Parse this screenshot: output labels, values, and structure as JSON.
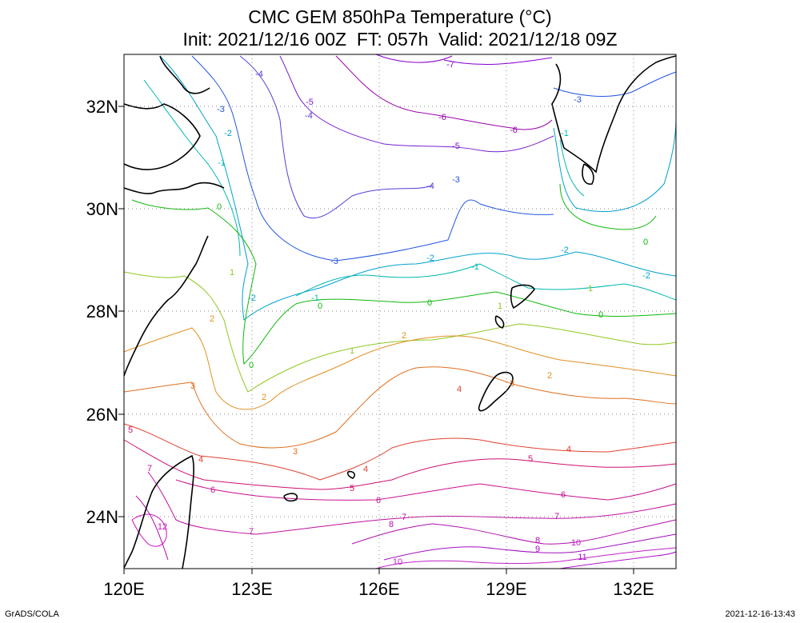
{
  "title": {
    "line1": "CMC GEM 850hPa Temperature (°C)",
    "line2": "Init: 2021/12/16 00Z  FT: 057h  Valid: 2021/12/18 09Z"
  },
  "axes": {
    "lat_labels": [
      "24N",
      "26N",
      "28N",
      "30N",
      "32N"
    ],
    "lon_labels": [
      "120E",
      "123E",
      "126E",
      "129E",
      "132E"
    ]
  },
  "footer": {
    "left": "GrADS/COLA",
    "right": "2021-12-16-13:43"
  },
  "colors": {
    "c-7": "#8800cc",
    "c-6": "#9900aa",
    "c-5": "#7a1fd0",
    "c-4": "#5a3ad6",
    "c-3": "#2255e0",
    "c-2": "#00a0d0",
    "c-1": "#00b8b0",
    "c0": "#10b810",
    "c1": "#90c820",
    "c2": "#e09020",
    "c3": "#e07020",
    "c4": "#e04030",
    "c5": "#d01070",
    "c6": "#c81090",
    "c7": "#c010a0",
    "c8": "#b010b0",
    "c9": "#a010c0",
    "c10": "#c020c8",
    "c11": "#b010d0",
    "c12": "#d010c0",
    "coast": "#000000",
    "grid": "#888888"
  },
  "contour_labels": [
    {
      "text": "-7",
      "color": "c-7"
    },
    {
      "text": "-6",
      "color": "c-6"
    },
    {
      "text": "-5",
      "color": "c-5"
    },
    {
      "text": "-4",
      "color": "c-4"
    },
    {
      "text": "-3",
      "color": "c-3"
    },
    {
      "text": "-2",
      "color": "c-2"
    },
    {
      "text": "-1",
      "color": "c-1"
    },
    {
      "text": "0",
      "color": "c0"
    },
    {
      "text": "1",
      "color": "c1"
    },
    {
      "text": "2",
      "color": "c2"
    },
    {
      "text": "3",
      "color": "c3"
    },
    {
      "text": "4",
      "color": "c4"
    },
    {
      "text": "5",
      "color": "c5"
    },
    {
      "text": "6",
      "color": "c6"
    },
    {
      "text": "7",
      "color": "c7"
    },
    {
      "text": "8",
      "color": "c8"
    },
    {
      "text": "9",
      "color": "c9"
    },
    {
      "text": "10",
      "color": "c10"
    },
    {
      "text": "11",
      "color": "c11"
    },
    {
      "text": "12",
      "color": "c12"
    }
  ]
}
